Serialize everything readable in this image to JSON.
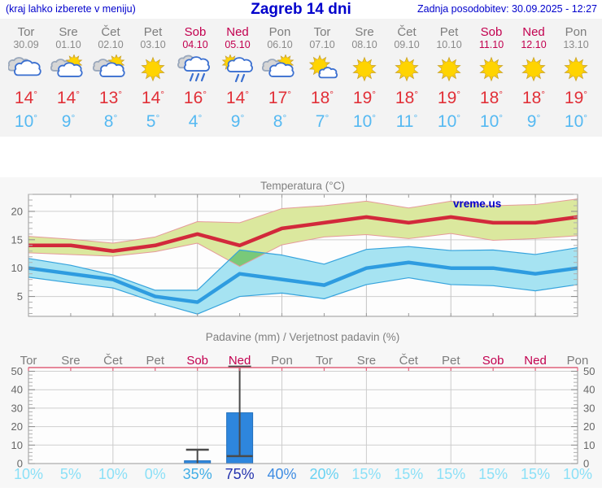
{
  "header": {
    "hint": "(kraj lahko izberete v meniju)",
    "title": "Zagreb 14 dni",
    "updated": "Zadnja posodobitev: 30.09.2025 - 12:27"
  },
  "watermark": "vreme.us",
  "colors": {
    "header_blue": "#0000cc",
    "weekend_red": "#c2004f",
    "day_gray": "#7d7d7d",
    "high_red": "#e13038",
    "low_blue": "#55b9f2",
    "max_line": "#d2293b",
    "max_band_fill": "#dbe89e",
    "max_band_edge": "#e59a9a",
    "min_line": "#2e9ce0",
    "min_band_fill": "#a6e3f2",
    "min_band_edge": "#35a3dd",
    "band_overlap": "#79c979",
    "bar_blue": "#2e86dd",
    "whisker": "#4a4a4a",
    "precip_top_axis": "#e0607a"
  },
  "forecast": {
    "days": [
      {
        "name": "Tor",
        "date": "30.09",
        "weekend": false,
        "icon": "cloudy",
        "high": 14,
        "low": 10
      },
      {
        "name": "Sre",
        "date": "01.10",
        "weekend": false,
        "icon": "partly-cloudy",
        "high": 14,
        "low": 9
      },
      {
        "name": "Čet",
        "date": "02.10",
        "weekend": false,
        "icon": "partly-cloudy",
        "high": 13,
        "low": 8
      },
      {
        "name": "Pet",
        "date": "03.10",
        "weekend": false,
        "icon": "sunny",
        "high": 14,
        "low": 5
      },
      {
        "name": "Sob",
        "date": "04.10",
        "weekend": true,
        "icon": "rain",
        "high": 16,
        "low": 4
      },
      {
        "name": "Ned",
        "date": "05.10",
        "weekend": true,
        "icon": "sun-shower",
        "high": 14,
        "low": 9
      },
      {
        "name": "Pon",
        "date": "06.10",
        "weekend": false,
        "icon": "partly-cloudy",
        "high": 17,
        "low": 8
      },
      {
        "name": "Tor",
        "date": "07.10",
        "weekend": false,
        "icon": "mostly-sunny",
        "high": 18,
        "low": 7
      },
      {
        "name": "Sre",
        "date": "08.10",
        "weekend": false,
        "icon": "sunny",
        "high": 19,
        "low": 10
      },
      {
        "name": "Čet",
        "date": "09.10",
        "weekend": false,
        "icon": "sunny",
        "high": 18,
        "low": 11
      },
      {
        "name": "Pet",
        "date": "10.10",
        "weekend": false,
        "icon": "sunny",
        "high": 19,
        "low": 10
      },
      {
        "name": "Sob",
        "date": "11.10",
        "weekend": true,
        "icon": "sunny",
        "high": 18,
        "low": 10
      },
      {
        "name": "Ned",
        "date": "12.10",
        "weekend": true,
        "icon": "sunny",
        "high": 18,
        "low": 9
      },
      {
        "name": "Pon",
        "date": "13.10",
        "weekend": false,
        "icon": "sunny",
        "high": 19,
        "low": 10
      }
    ]
  },
  "chart_data": [
    {
      "type": "line",
      "title": "Temperatura (°C)",
      "categories": [
        "Tor",
        "Sre",
        "Čet",
        "Pet",
        "Sob",
        "Ned",
        "Pon",
        "Tor",
        "Sre",
        "Čet",
        "Pet",
        "Sob",
        "Ned",
        "Pon"
      ],
      "ylim": [
        1.5,
        23
      ],
      "yticks": [
        5,
        10,
        15,
        20
      ],
      "grid": true,
      "vgrid_day_indices": [
        2,
        4,
        6,
        8,
        10,
        12
      ],
      "series": [
        {
          "name": "max_temp",
          "values": [
            14,
            14,
            13,
            14,
            16,
            14,
            17,
            18,
            19,
            18,
            19,
            18,
            18,
            19
          ]
        },
        {
          "name": "max_band_upper",
          "values": [
            15.6,
            15.1,
            14.4,
            15.5,
            18.2,
            18.0,
            20.5,
            21.0,
            21.8,
            20.6,
            21.8,
            21.0,
            21.2,
            22.2
          ]
        },
        {
          "name": "max_band_lower",
          "values": [
            12.7,
            12.4,
            12.1,
            12.9,
            14.4,
            10.3,
            14.1,
            15.5,
            15.9,
            15.2,
            16.1,
            14.9,
            15.2,
            15.7
          ]
        },
        {
          "name": "min_temp",
          "values": [
            10,
            9,
            8,
            5,
            4,
            9,
            8,
            7,
            10,
            11,
            10,
            10,
            9,
            10
          ]
        },
        {
          "name": "min_band_upper",
          "values": [
            11.7,
            10.5,
            8.8,
            6.1,
            6.1,
            13.2,
            12.3,
            10.7,
            13.3,
            13.8,
            13.1,
            13.2,
            12.4,
            13.6
          ]
        },
        {
          "name": "min_band_lower",
          "values": [
            8.4,
            7.4,
            6.5,
            4.0,
            1.9,
            5.0,
            5.6,
            4.6,
            7.1,
            8.3,
            7.1,
            6.9,
            6.0,
            7.1
          ]
        }
      ]
    },
    {
      "type": "bar",
      "title": "Padavine (mm) / Verjetnost padavin (%)",
      "categories": [
        "Tor",
        "Sre",
        "Čet",
        "Pet",
        "Sob",
        "Ned",
        "Pon",
        "Tor",
        "Sre",
        "Čet",
        "Pet",
        "Sob",
        "Ned",
        "Pon"
      ],
      "weekend_indices": [
        4,
        5,
        11,
        12
      ],
      "ylim": [
        0,
        52
      ],
      "yticks": [
        0,
        10,
        20,
        30,
        40,
        50
      ],
      "grid": true,
      "vgrid_day_indices": [
        2,
        4,
        6,
        8,
        10,
        12
      ],
      "values": [
        0,
        0,
        0,
        0,
        1.5,
        27.5,
        0,
        0,
        0,
        0,
        0,
        0,
        0,
        0
      ],
      "whisker_low": [
        null,
        null,
        null,
        null,
        0,
        4,
        null,
        null,
        null,
        null,
        null,
        null,
        null,
        null
      ],
      "whisker_high": [
        null,
        null,
        null,
        null,
        7.5,
        52.5,
        null,
        null,
        null,
        null,
        null,
        null,
        null,
        null
      ],
      "probabilities": [
        10,
        5,
        10,
        0,
        35,
        75,
        40,
        20,
        15,
        15,
        15,
        15,
        15,
        10
      ]
    }
  ]
}
